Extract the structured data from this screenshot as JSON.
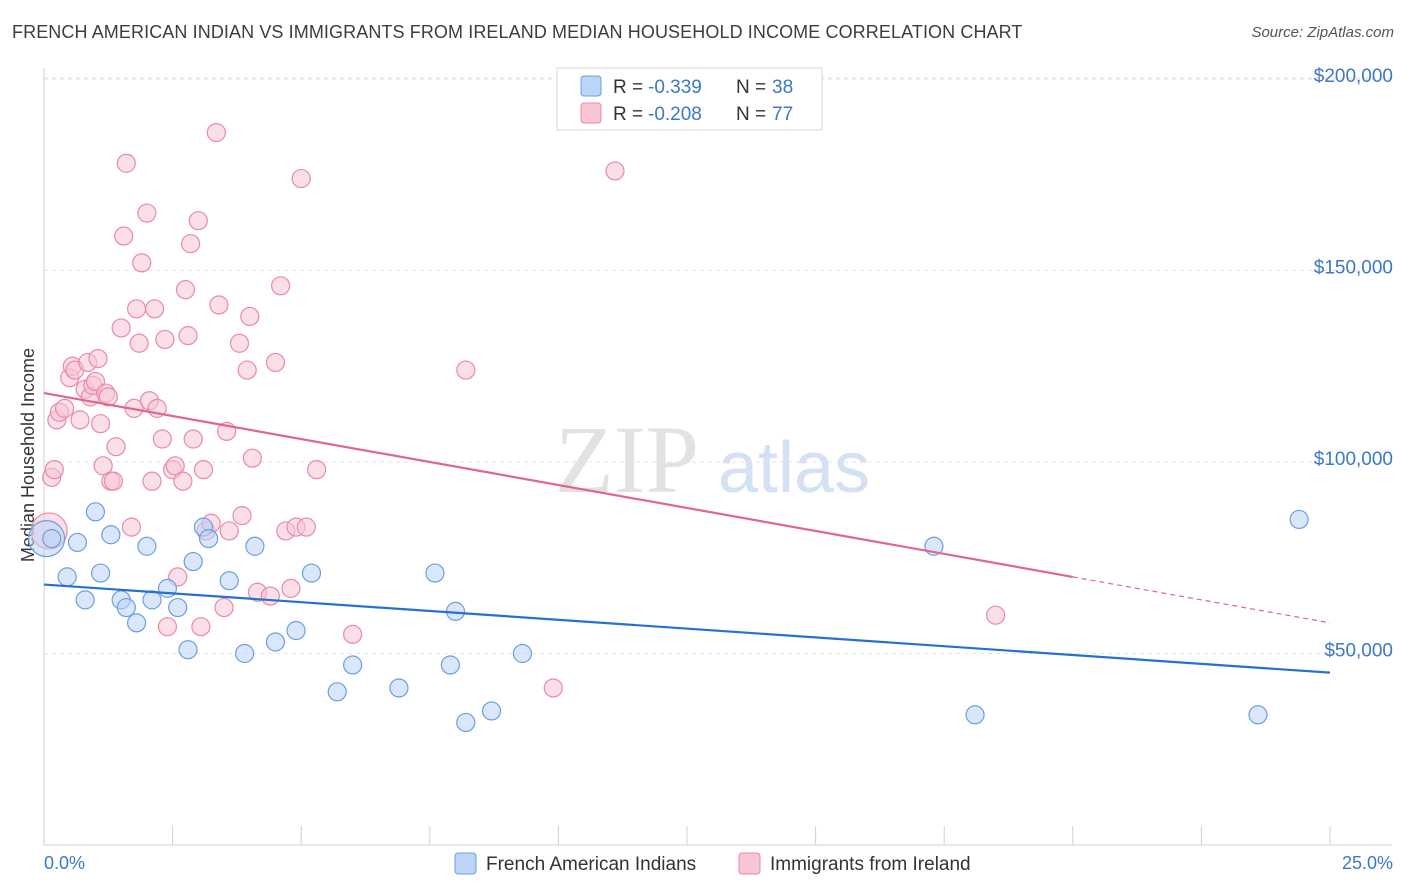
{
  "title": "FRENCH AMERICAN INDIAN VS IMMIGRANTS FROM IRELAND MEDIAN HOUSEHOLD INCOME CORRELATION CHART",
  "source": "Source: ZipAtlas.com",
  "chart_data": {
    "type": "scatter",
    "ylabel": "Median Household Income",
    "xlim": [
      0,
      25
    ],
    "ylim": [
      0,
      210000
    ],
    "y_ticks": [
      {
        "value": 50000,
        "label": "$50,000"
      },
      {
        "value": 100000,
        "label": "$100,000"
      },
      {
        "value": 150000,
        "label": "$150,000"
      },
      {
        "value": 200000,
        "label": "$200,000"
      }
    ],
    "x_tick_labels": {
      "min": "0.0%",
      "max": "25.0%"
    },
    "grid": true,
    "legend_position": "top-center",
    "stats": [
      {
        "r_label": "R = ",
        "r_value": "-0.339",
        "n_label": "N = ",
        "n_value": "38"
      },
      {
        "r_label": "R = ",
        "r_value": "-0.208",
        "n_label": "N = ",
        "n_value": "77"
      }
    ],
    "series": [
      {
        "name": "French American Indians",
        "color": "#6a9fe0",
        "fill": "#bcd4f5",
        "trend_color": "#2670d0",
        "trend": {
          "x0": 0,
          "y0": 68000,
          "x1": 25,
          "y1": 45000
        },
        "points": [
          [
            0.05,
            80000
          ],
          [
            0.15,
            80000
          ],
          [
            0.45,
            70000
          ],
          [
            0.65,
            79000
          ],
          [
            0.8,
            64000
          ],
          [
            1.0,
            87000
          ],
          [
            1.1,
            71000
          ],
          [
            1.3,
            81000
          ],
          [
            1.5,
            64000
          ],
          [
            1.6,
            62000
          ],
          [
            1.8,
            58000
          ],
          [
            2.0,
            78000
          ],
          [
            2.1,
            64000
          ],
          [
            2.4,
            67000
          ],
          [
            2.6,
            62000
          ],
          [
            2.8,
            51000
          ],
          [
            2.9,
            74000
          ],
          [
            3.1,
            83000
          ],
          [
            3.2,
            80000
          ],
          [
            3.6,
            69000
          ],
          [
            3.9,
            50000
          ],
          [
            4.1,
            78000
          ],
          [
            4.5,
            53000
          ],
          [
            4.9,
            56000
          ],
          [
            5.2,
            71000
          ],
          [
            5.7,
            40000
          ],
          [
            6.0,
            47000
          ],
          [
            6.9,
            41000
          ],
          [
            7.6,
            71000
          ],
          [
            7.9,
            47000
          ],
          [
            8.0,
            61000
          ],
          [
            8.2,
            32000
          ],
          [
            8.7,
            35000
          ],
          [
            9.3,
            50000
          ],
          [
            17.3,
            78000
          ],
          [
            18.1,
            34000
          ],
          [
            23.6,
            34000
          ],
          [
            24.4,
            85000
          ]
        ]
      },
      {
        "name": "Immigrants from Ireland",
        "color": "#e88aa8",
        "fill": "#f8c5d5",
        "trend_color": "#e06690",
        "trend": {
          "x0": 0,
          "y0": 118000,
          "x1": 20,
          "y1": 70000
        },
        "trend_extension": {
          "x1": 25,
          "y1": 58000
        },
        "points": [
          [
            0.1,
            82000
          ],
          [
            0.15,
            96000
          ],
          [
            0.2,
            98000
          ],
          [
            0.25,
            111000
          ],
          [
            0.3,
            113000
          ],
          [
            0.4,
            114000
          ],
          [
            0.5,
            122000
          ],
          [
            0.55,
            125000
          ],
          [
            0.6,
            124000
          ],
          [
            0.7,
            111000
          ],
          [
            0.8,
            119000
          ],
          [
            0.85,
            126000
          ],
          [
            0.9,
            117000
          ],
          [
            0.95,
            120000
          ],
          [
            1.0,
            121000
          ],
          [
            1.05,
            127000
          ],
          [
            1.1,
            110000
          ],
          [
            1.15,
            99000
          ],
          [
            1.2,
            118000
          ],
          [
            1.25,
            117000
          ],
          [
            1.3,
            95000
          ],
          [
            1.35,
            95000
          ],
          [
            1.4,
            104000
          ],
          [
            1.5,
            135000
          ],
          [
            1.55,
            159000
          ],
          [
            1.6,
            178000
          ],
          [
            1.7,
            83000
          ],
          [
            1.75,
            114000
          ],
          [
            1.8,
            140000
          ],
          [
            1.85,
            131000
          ],
          [
            1.9,
            152000
          ],
          [
            2.0,
            165000
          ],
          [
            2.05,
            116000
          ],
          [
            2.1,
            95000
          ],
          [
            2.15,
            140000
          ],
          [
            2.2,
            114000
          ],
          [
            2.3,
            106000
          ],
          [
            2.35,
            132000
          ],
          [
            2.4,
            57000
          ],
          [
            2.5,
            98000
          ],
          [
            2.55,
            99000
          ],
          [
            2.6,
            70000
          ],
          [
            2.7,
            95000
          ],
          [
            2.75,
            145000
          ],
          [
            2.8,
            133000
          ],
          [
            2.85,
            157000
          ],
          [
            2.9,
            106000
          ],
          [
            3.0,
            163000
          ],
          [
            3.05,
            57000
          ],
          [
            3.1,
            98000
          ],
          [
            3.15,
            82000
          ],
          [
            3.25,
            84000
          ],
          [
            3.35,
            186000
          ],
          [
            3.4,
            141000
          ],
          [
            3.5,
            62000
          ],
          [
            3.55,
            108000
          ],
          [
            3.6,
            82000
          ],
          [
            3.8,
            131000
          ],
          [
            3.85,
            86000
          ],
          [
            3.95,
            124000
          ],
          [
            4.0,
            138000
          ],
          [
            4.05,
            101000
          ],
          [
            4.15,
            66000
          ],
          [
            4.4,
            65000
          ],
          [
            4.5,
            126000
          ],
          [
            4.6,
            146000
          ],
          [
            4.7,
            82000
          ],
          [
            4.8,
            67000
          ],
          [
            4.9,
            83000
          ],
          [
            5.0,
            174000
          ],
          [
            5.1,
            83000
          ],
          [
            5.3,
            98000
          ],
          [
            6.0,
            55000
          ],
          [
            8.2,
            124000
          ],
          [
            9.9,
            41000
          ],
          [
            11.1,
            176000
          ],
          [
            18.5,
            60000
          ]
        ]
      }
    ]
  }
}
